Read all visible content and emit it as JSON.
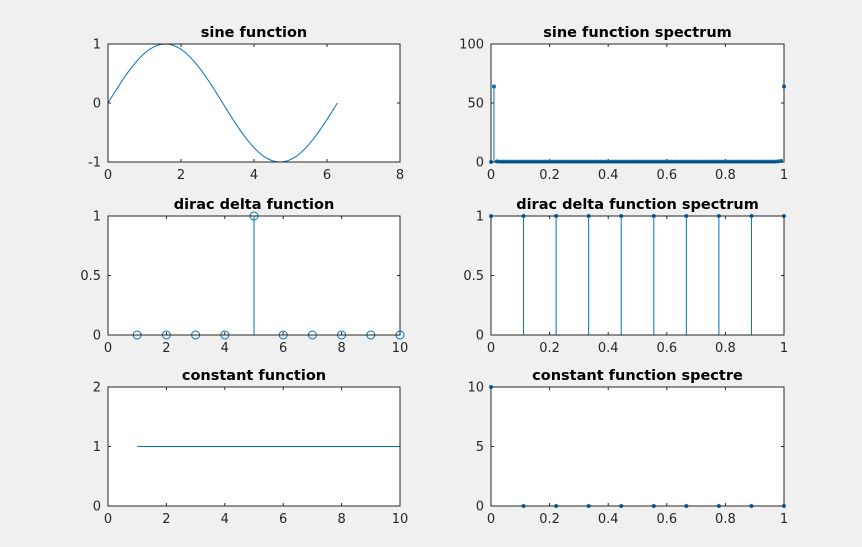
{
  "chart_data": [
    {
      "type": "line",
      "title": "sine function",
      "xlim": [
        0,
        8
      ],
      "ylim": [
        -1,
        1
      ],
      "xticks": [
        "0",
        "2",
        "4",
        "6",
        "8"
      ],
      "yticks": [
        "-1",
        "0",
        "1"
      ],
      "function": "sin(x)",
      "x_range": [
        0,
        6.2832
      ],
      "points": 100,
      "color": "#0072bd"
    },
    {
      "type": "stem",
      "title": "sine function spectrum",
      "xlim": [
        0,
        1
      ],
      "ylim": [
        0,
        100
      ],
      "xticks": [
        "0",
        "0.2",
        "0.4",
        "0.6",
        "0.8",
        "1"
      ],
      "yticks": [
        "0",
        "50",
        "100"
      ],
      "x": [
        0,
        0.0101,
        0.0202,
        0.0303,
        0.9697,
        0.9798,
        0.9899,
        1.0
      ],
      "values": [
        0,
        64,
        0.5,
        0.3,
        0.3,
        0.5,
        1,
        64
      ],
      "n_points": 100,
      "baseline_value": 0.3,
      "marker_size": "small",
      "color": "#0072bd"
    },
    {
      "type": "stem",
      "title": "dirac delta function",
      "xlim": [
        0,
        10
      ],
      "ylim": [
        0,
        1
      ],
      "xticks": [
        "0",
        "2",
        "4",
        "6",
        "8",
        "10"
      ],
      "yticks": [
        "0",
        "0.5",
        "1"
      ],
      "x": [
        1,
        2,
        3,
        4,
        5,
        6,
        7,
        8,
        9,
        10
      ],
      "values": [
        0,
        0,
        0,
        0,
        1,
        0,
        0,
        0,
        0,
        0
      ],
      "marker": "circle",
      "color": "#0072bd"
    },
    {
      "type": "stem",
      "title": "dirac delta function spectrum",
      "xlim": [
        0,
        1
      ],
      "ylim": [
        0,
        1
      ],
      "xticks": [
        "0",
        "0.2",
        "0.4",
        "0.6",
        "0.8",
        "1"
      ],
      "yticks": [
        "0",
        "0.5",
        "1"
      ],
      "x": [
        0,
        0.1111,
        0.2222,
        0.3333,
        0.4444,
        0.5556,
        0.6667,
        0.7778,
        0.8889,
        1.0
      ],
      "values": [
        1,
        1,
        1,
        1,
        1,
        1,
        1,
        1,
        1,
        1
      ],
      "marker_size": "small",
      "color": "#0072bd"
    },
    {
      "type": "line",
      "title": "constant function",
      "xlim": [
        0,
        10
      ],
      "ylim": [
        0,
        2
      ],
      "xticks": [
        "0",
        "2",
        "4",
        "6",
        "8",
        "10"
      ],
      "yticks": [
        "0",
        "1",
        "2"
      ],
      "x": [
        1,
        10
      ],
      "values": [
        1,
        1
      ],
      "color": "#0072bd"
    },
    {
      "type": "stem",
      "title": "constant function spectre",
      "xlim": [
        0,
        1
      ],
      "ylim": [
        0,
        10
      ],
      "xticks": [
        "0",
        "0.2",
        "0.4",
        "0.6",
        "0.8",
        "1"
      ],
      "yticks": [
        "0",
        "5",
        "10"
      ],
      "x": [
        0,
        0.1111,
        0.2222,
        0.3333,
        0.4444,
        0.5556,
        0.6667,
        0.7778,
        0.8889,
        1.0
      ],
      "values": [
        10,
        0,
        0,
        0,
        0,
        0,
        0,
        0,
        0,
        0
      ],
      "marker_size": "small",
      "color": "#0072bd"
    }
  ]
}
